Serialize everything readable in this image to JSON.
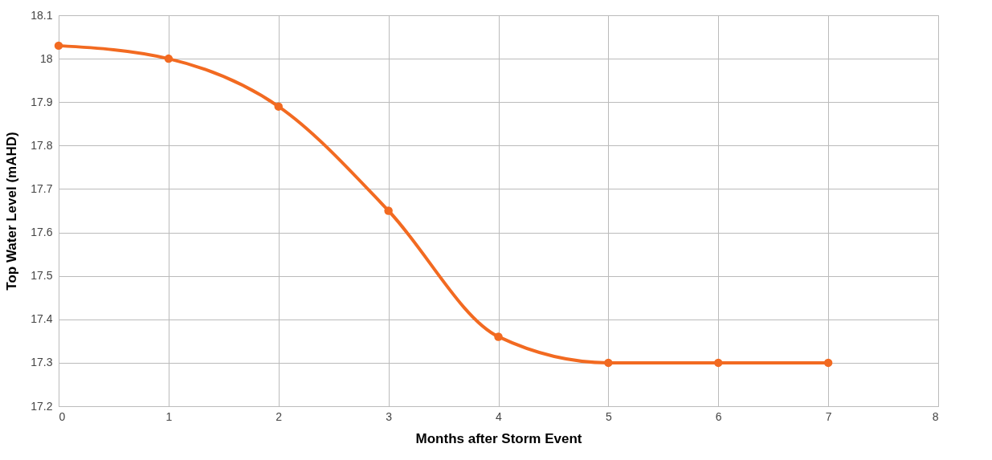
{
  "chart_data": {
    "type": "line",
    "xlabel": "Months after Storm Event",
    "ylabel": "Top Water Level (mAHD)",
    "x": [
      0,
      1,
      2,
      3,
      4,
      5,
      6,
      7
    ],
    "series": [
      {
        "color": "#f26a21",
        "values": [
          18.03,
          18.0,
          17.89,
          17.65,
          17.36,
          17.3,
          17.3,
          17.3
        ]
      }
    ],
    "xlim": [
      0,
      8
    ],
    "xticks": [
      0,
      1,
      2,
      3,
      4,
      5,
      6,
      7,
      8
    ],
    "ylim": [
      17.2,
      18.1
    ],
    "yticks": [
      17.2,
      17.3,
      17.4,
      17.5,
      17.6,
      17.7,
      17.8,
      17.9,
      18,
      18.1
    ],
    "grid": true,
    "marker": "circle",
    "line_style": "solid"
  }
}
